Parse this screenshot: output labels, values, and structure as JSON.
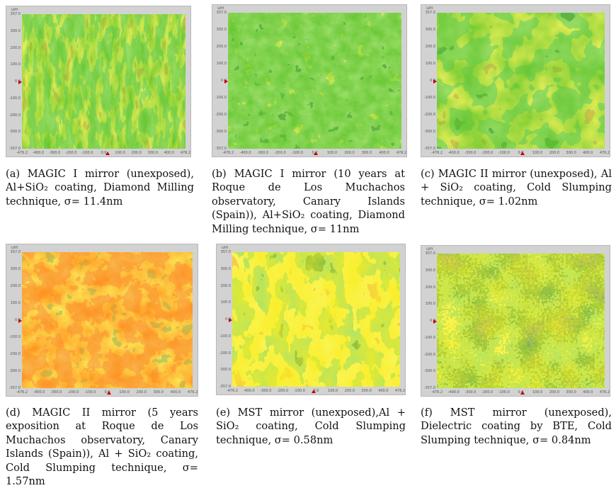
{
  "unit_label": "um",
  "y_ticks": [
    "357.0",
    "300.0",
    "200.0",
    "100.0",
    "0.0",
    "-100.0",
    "-200.0",
    "-300.0",
    "-357.0"
  ],
  "x_ticks": [
    "-476.2",
    "-400.0",
    "-300.0",
    "-200.0",
    "-100.0",
    "0.0",
    "100.0",
    "200.0",
    "300.0",
    "400.0",
    "476.2"
  ],
  "colors": {
    "red": "#ee1c0c",
    "orange": "#ff8a1a",
    "yellow": "#f8ec1c",
    "green": "#5fc32a",
    "dark_green": "#1f6a18",
    "blue": "#12279a",
    "frame": "#d2d2d2"
  },
  "panels": [
    {
      "caption": "(a) MAGIC I mirror (unexposed), Al+SiO₂ coating, Diamond Milling technique, σ= 11.4nm"
    },
    {
      "caption": "(b) MAGIC I mirror (10 years at Roque de Los Muchachos observatory, Canary Islands (Spain)), Al+SiO₂ coating, Diamond Milling technique, σ= 11nm"
    },
    {
      "caption": "(c) MAGIC II mirror (unexposed), Al + SiO₂ coating, Cold Slumping technique, σ= 1.02nm"
    },
    {
      "caption": "(d) MAGIC II mirror (5 years exposition at Roque de Los Muchachos observatory, Canary Islands (Spain)), Al + SiO₂ coating, Cold Slumping technique, σ= 1.57nm"
    },
    {
      "caption": "(e) MST mirror (unexposed),Al + SiO₂ coating, Cold Slumping technique, σ= 0.58nm"
    },
    {
      "caption": "(f) MST mirror (unexposed), Dielectric coating by BTE, Cold Slumping technique, σ= 0.84nm"
    }
  ]
}
